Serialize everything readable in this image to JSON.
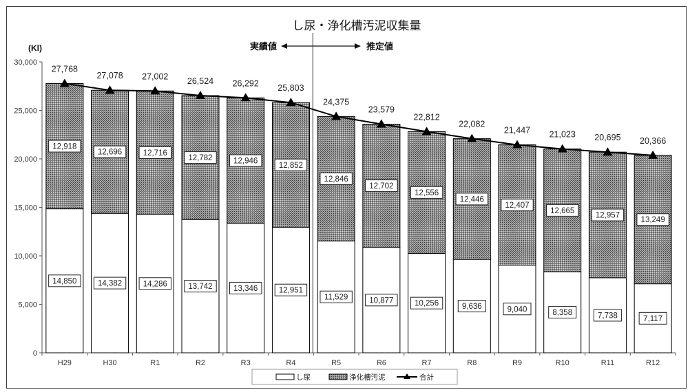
{
  "chart_data": {
    "type": "bar",
    "stacked": true,
    "title": "し尿・浄化槽汚泥収集量",
    "ylabel": "(Kl)",
    "ylim": [
      0,
      30000
    ],
    "yticks": [
      0,
      5000,
      10000,
      15000,
      20000,
      25000,
      30000
    ],
    "ytick_labels": [
      "0",
      "5,000",
      "10,000",
      "15,000",
      "20,000",
      "25,000",
      "30,000"
    ],
    "categories": [
      "H29",
      "H30",
      "R1",
      "R2",
      "R3",
      "R4",
      "R5",
      "R6",
      "R7",
      "R8",
      "R9",
      "R10",
      "R11",
      "R12"
    ],
    "series": [
      {
        "name": "し尿",
        "kind": "bar",
        "values": [
          14850,
          14382,
          14286,
          13742,
          13346,
          12951,
          11529,
          10877,
          10256,
          9636,
          9040,
          8358,
          7738,
          7117
        ],
        "labels": [
          "14,850",
          "14,382",
          "14,286",
          "13,742",
          "13,346",
          "12,951",
          "11,529",
          "10,877",
          "10,256",
          "9,636",
          "9,040",
          "8,358",
          "7,738",
          "7,117"
        ]
      },
      {
        "name": "浄化槽汚泥",
        "kind": "bar",
        "values": [
          12918,
          12696,
          12716,
          12782,
          12946,
          12852,
          12846,
          12702,
          12556,
          12446,
          12407,
          12665,
          12957,
          13249
        ],
        "labels": [
          "12,918",
          "12,696",
          "12,716",
          "12,782",
          "12,946",
          "12,852",
          "12,846",
          "12,702",
          "12,556",
          "12,446",
          "12,407",
          "12,665",
          "12,957",
          "13,249"
        ]
      },
      {
        "name": "合計",
        "kind": "line",
        "values": [
          27768,
          27078,
          27002,
          26524,
          26292,
          25803,
          24375,
          23579,
          22812,
          22082,
          21447,
          21023,
          20695,
          20366
        ],
        "labels": [
          "27,768",
          "27,078",
          "27,002",
          "26,524",
          "26,292",
          "25,803",
          "24,375",
          "23,579",
          "22,812",
          "22,082",
          "21,447",
          "21,023",
          "20,695",
          "20,366"
        ]
      }
    ],
    "annotations": {
      "actual": "実績値",
      "forecast": "推定値"
    },
    "legend_position": "bottom",
    "grid": false
  },
  "colors": {
    "bar_fill": "#ffffff",
    "bar_stroke": "#000000",
    "hatch_dark": "#5a5a5a",
    "line": "#000000"
  }
}
